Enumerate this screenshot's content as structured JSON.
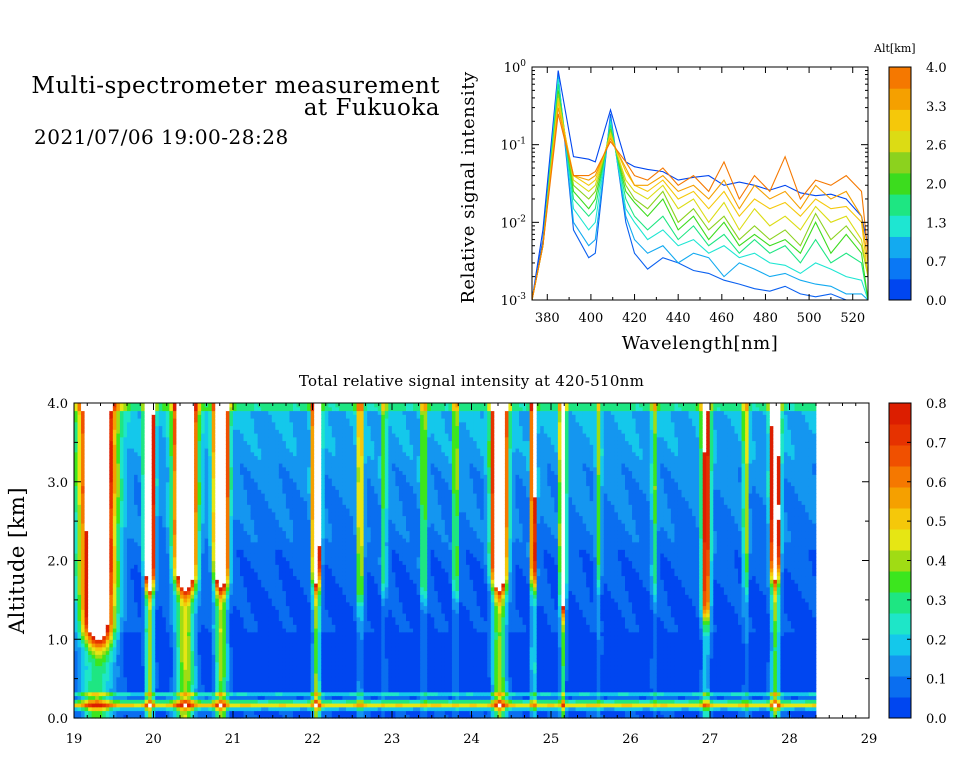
{
  "header": {
    "title_line1": "Multi-spectrometer measurement",
    "title_line2": "at Fukuoka",
    "datetime": "2021/07/06 19:00-28:28"
  },
  "chart_data": [
    {
      "type": "line",
      "xlabel": "Wavelength[nm]",
      "ylabel": "Relative signal intensity",
      "yscale": "log",
      "xlim": [
        373,
        527
      ],
      "ylim": [
        0.001,
        1
      ],
      "x_ticks": [
        "380",
        "400",
        "420",
        "440",
        "460",
        "480",
        "500",
        "520"
      ],
      "y_ticks": [
        "10^-3",
        "10^-2",
        "10^-1",
        "10^0"
      ],
      "colorbar": {
        "label": "Alt[km]",
        "ticks": [
          "0.0",
          "0.7",
          "1.3",
          "2.0",
          "2.6",
          "3.3",
          "4.0"
        ],
        "colors": [
          "#0046f0",
          "#0a78f5",
          "#13aaf0",
          "#1ee6d2",
          "#1ee682",
          "#3cdc1e",
          "#8cd21e",
          "#dcdc14",
          "#f5c80a",
          "#f5a000",
          "#f57800"
        ]
      },
      "x": [
        373,
        378,
        385,
        392,
        399,
        402,
        409,
        416,
        420,
        426,
        433,
        440,
        447,
        454,
        461,
        468,
        475,
        482,
        489,
        496,
        503,
        510,
        517,
        524,
        527
      ],
      "series": [
        {
          "altitude": "0.0",
          "color": "#0046f0",
          "values": [
            0.001,
            0.008,
            0.9,
            0.07,
            0.065,
            0.06,
            0.28,
            0.06,
            0.052,
            0.048,
            0.045,
            0.035,
            0.038,
            0.04,
            0.03,
            0.033,
            0.03,
            0.026,
            0.03,
            0.024,
            0.022,
            0.023,
            0.02,
            0.012,
            0.005
          ]
        },
        {
          "altitude": "0.2",
          "color": "#0a60f0",
          "values": [
            0.001,
            0.006,
            0.8,
            0.008,
            0.0035,
            0.004,
            0.25,
            0.01,
            0.004,
            0.0025,
            0.0035,
            0.003,
            0.0024,
            0.0022,
            0.0018,
            0.0016,
            0.0014,
            0.0013,
            0.0015,
            0.0012,
            0.0011,
            0.0012,
            0.001,
            0.001,
            0.001
          ]
        },
        {
          "altitude": "0.7",
          "color": "#13aaf0",
          "values": [
            0.001,
            0.005,
            0.75,
            0.01,
            0.005,
            0.006,
            0.22,
            0.012,
            0.006,
            0.004,
            0.005,
            0.003,
            0.004,
            0.0035,
            0.002,
            0.003,
            0.0025,
            0.002,
            0.0022,
            0.0018,
            0.0016,
            0.0015,
            0.0012,
            0.0012,
            0.001
          ]
        },
        {
          "altitude": "1.3",
          "color": "#1ee6d2",
          "values": [
            0.001,
            0.005,
            0.7,
            0.015,
            0.008,
            0.01,
            0.2,
            0.015,
            0.01,
            0.006,
            0.008,
            0.005,
            0.006,
            0.004,
            0.005,
            0.0035,
            0.004,
            0.003,
            0.0028,
            0.0022,
            0.003,
            0.0025,
            0.002,
            0.0018,
            0.001
          ]
        },
        {
          "altitude": "2.0",
          "color": "#1ee682",
          "values": [
            0.001,
            0.005,
            0.6,
            0.02,
            0.012,
            0.015,
            0.18,
            0.02,
            0.012,
            0.008,
            0.012,
            0.006,
            0.009,
            0.005,
            0.007,
            0.004,
            0.006,
            0.004,
            0.005,
            0.003,
            0.006,
            0.003,
            0.004,
            0.003,
            0.001
          ]
        },
        {
          "altitude": "2.3",
          "color": "#3cdc1e",
          "values": [
            0.001,
            0.005,
            0.5,
            0.025,
            0.015,
            0.02,
            0.16,
            0.025,
            0.018,
            0.012,
            0.02,
            0.008,
            0.012,
            0.006,
            0.01,
            0.005,
            0.007,
            0.005,
            0.006,
            0.004,
            0.01,
            0.004,
            0.007,
            0.004,
            0.001
          ]
        },
        {
          "altitude": "2.6",
          "color": "#8cd21e",
          "values": [
            0.001,
            0.005,
            0.45,
            0.03,
            0.02,
            0.025,
            0.15,
            0.03,
            0.02,
            0.015,
            0.025,
            0.01,
            0.015,
            0.008,
            0.012,
            0.006,
            0.009,
            0.006,
            0.008,
            0.005,
            0.013,
            0.006,
            0.009,
            0.005,
            0.002
          ]
        },
        {
          "altitude": "3.0",
          "color": "#dcdc14",
          "values": [
            0.001,
            0.005,
            0.4,
            0.035,
            0.025,
            0.03,
            0.14,
            0.035,
            0.025,
            0.02,
            0.03,
            0.015,
            0.02,
            0.01,
            0.018,
            0.008,
            0.015,
            0.009,
            0.012,
            0.008,
            0.016,
            0.01,
            0.012,
            0.006,
            0.002
          ]
        },
        {
          "altitude": "3.3",
          "color": "#f5c80a",
          "values": [
            0.001,
            0.005,
            0.35,
            0.04,
            0.03,
            0.035,
            0.13,
            0.045,
            0.03,
            0.025,
            0.035,
            0.02,
            0.025,
            0.015,
            0.025,
            0.012,
            0.02,
            0.015,
            0.018,
            0.012,
            0.02,
            0.015,
            0.016,
            0.01,
            0.002
          ]
        },
        {
          "altitude": "3.7",
          "color": "#f5a000",
          "values": [
            0.001,
            0.005,
            0.3,
            0.04,
            0.035,
            0.04,
            0.12,
            0.05,
            0.03,
            0.03,
            0.04,
            0.025,
            0.03,
            0.02,
            0.035,
            0.015,
            0.03,
            0.02,
            0.025,
            0.015,
            0.03,
            0.02,
            0.025,
            0.012,
            0.003
          ]
        },
        {
          "altitude": "4.0",
          "color": "#f57800",
          "values": [
            0.001,
            0.005,
            0.25,
            0.04,
            0.04,
            0.045,
            0.11,
            0.06,
            0.04,
            0.035,
            0.05,
            0.03,
            0.04,
            0.025,
            0.06,
            0.02,
            0.04,
            0.025,
            0.07,
            0.02,
            0.035,
            0.03,
            0.04,
            0.025,
            0.004
          ]
        }
      ]
    },
    {
      "type": "heatmap",
      "title": "Total relative signal intensity at 420-510nm",
      "ylabel": "Altitude [km]",
      "xlim": [
        19,
        29
      ],
      "ylim": [
        0,
        4
      ],
      "x_ticks": [
        "19",
        "20",
        "21",
        "22",
        "23",
        "24",
        "25",
        "26",
        "27",
        "28",
        "29"
      ],
      "y_ticks": [
        "0.0",
        "1.0",
        "2.0",
        "3.0",
        "4.0"
      ],
      "data_time_range": [
        19.0,
        28.33
      ],
      "colorbar": {
        "ticks": [
          "0.0",
          "0.1",
          "0.2",
          "0.3",
          "0.4",
          "0.5",
          "0.6",
          "0.7",
          "0.8"
        ],
        "value_range": [
          0,
          0.8
        ],
        "colors": [
          "#0046f0",
          "#0a6ef0",
          "#1496f0",
          "#14c8eb",
          "#1ee6c8",
          "#1ee682",
          "#3ce61e",
          "#a0dc14",
          "#e6e614",
          "#f5c80a",
          "#f5a000",
          "#f57800",
          "#f05000",
          "#e63200",
          "#dc1e00"
        ],
        "over_color": "#ffffff"
      },
      "background_value": 0.04,
      "surface_layers": [
        {
          "alt": 0.15,
          "value": 0.65
        },
        {
          "alt": 0.22,
          "value": 0.25
        },
        {
          "alt": 0.3,
          "value": 0.18
        }
      ],
      "columns": [
        {
          "time": 19.3,
          "width": 0.3,
          "base_alt": 1.0,
          "peak": 1.2
        },
        {
          "time": 19.95,
          "width": 0.08,
          "base_alt": 1.7,
          "peak": 1.5
        },
        {
          "time": 20.4,
          "width": 0.18,
          "base_alt": 1.7,
          "peak": 1.6
        },
        {
          "time": 20.85,
          "width": 0.12,
          "base_alt": 1.7,
          "peak": 1.5
        },
        {
          "time": 22.05,
          "width": 0.07,
          "base_alt": 1.75,
          "peak": 1.4
        },
        {
          "time": 22.6,
          "width": 0.06,
          "base_alt": 1.5,
          "peak": 0.45
        },
        {
          "time": 22.9,
          "width": 0.05,
          "base_alt": 1.6,
          "peak": 0.25
        },
        {
          "time": 23.4,
          "width": 0.06,
          "base_alt": 1.5,
          "peak": 0.3
        },
        {
          "time": 23.8,
          "width": 0.05,
          "base_alt": 1.5,
          "peak": 0.35
        },
        {
          "time": 24.35,
          "width": 0.13,
          "base_alt": 1.7,
          "peak": 1.5
        },
        {
          "time": 24.78,
          "width": 0.05,
          "base_alt": 1.7,
          "peak": 0.9
        },
        {
          "time": 25.15,
          "width": 0.05,
          "base_alt": 1.4,
          "peak": 1.2
        },
        {
          "time": 25.6,
          "width": 0.05,
          "base_alt": 1.6,
          "peak": 0.25
        },
        {
          "time": 26.3,
          "width": 0.05,
          "base_alt": 1.6,
          "peak": 0.25
        },
        {
          "time": 26.95,
          "width": 0.08,
          "base_alt": 1.3,
          "peak": 0.75
        },
        {
          "time": 27.45,
          "width": 0.05,
          "base_alt": 1.6,
          "peak": 0.35
        },
        {
          "time": 27.82,
          "width": 0.08,
          "base_alt": 1.8,
          "peak": 1.3
        }
      ]
    }
  ]
}
